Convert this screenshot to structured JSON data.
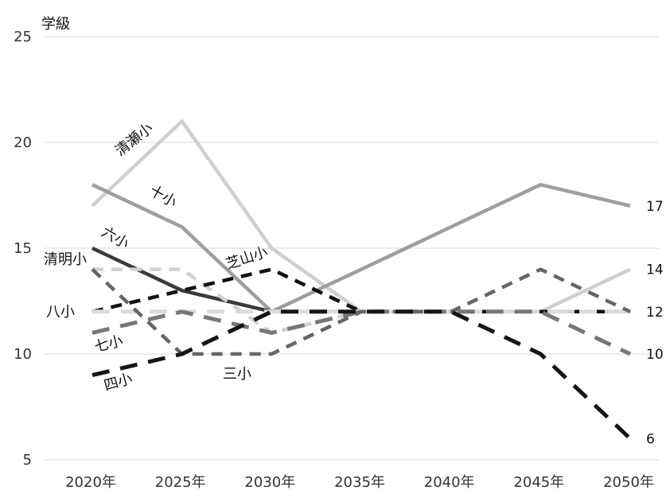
{
  "chart_data": {
    "type": "line",
    "ylabel": "学級",
    "ylim": [
      5,
      25
    ],
    "y_ticks": [
      5,
      10,
      15,
      20,
      25
    ],
    "categories": [
      "2020年",
      "2025年",
      "2030年",
      "2035年",
      "2040年",
      "2045年",
      "2050年"
    ],
    "grid": "horizontal",
    "legend": "none (direct labels)",
    "series": [
      {
        "name": "清瀬小",
        "values": [
          17,
          21,
          15,
          12,
          12,
          12,
          14
        ],
        "color": "#cfcfcf",
        "style": "solid"
      },
      {
        "name": "十小",
        "values": [
          18,
          16,
          12,
          14,
          16,
          18,
          17
        ],
        "color": "#9e9e9e",
        "style": "solid"
      },
      {
        "name": "六小",
        "values": [
          15,
          13,
          12,
          12,
          12,
          12,
          12
        ],
        "color": "#3a3a3a",
        "style": "solid"
      },
      {
        "name": "清明小",
        "values": [
          14,
          14,
          11,
          12,
          12,
          12,
          12
        ],
        "color": "#d0d0d0",
        "style": "dashed"
      },
      {
        "name": "芝山小",
        "values": [
          12,
          13,
          14,
          12,
          12,
          12,
          12
        ],
        "color": "#111111",
        "style": "dashed"
      },
      {
        "name": "八小",
        "values": [
          12,
          12,
          12,
          12,
          12,
          12,
          12
        ],
        "color": "#dcdcdc",
        "style": "longdash"
      },
      {
        "name": "七小",
        "values": [
          11,
          12,
          11,
          12,
          12,
          12,
          10
        ],
        "color": "#777777",
        "style": "longdash"
      },
      {
        "name": "三小",
        "values": [
          14,
          10,
          10,
          12,
          12,
          14,
          12
        ],
        "color": "#666666",
        "style": "dashed"
      },
      {
        "name": "四小",
        "values": [
          9,
          10,
          12,
          12,
          12,
          10,
          6
        ],
        "color": "#151515",
        "style": "longdash"
      }
    ],
    "end_labels": [
      "17",
      "14",
      "12",
      "10",
      "6"
    ]
  }
}
